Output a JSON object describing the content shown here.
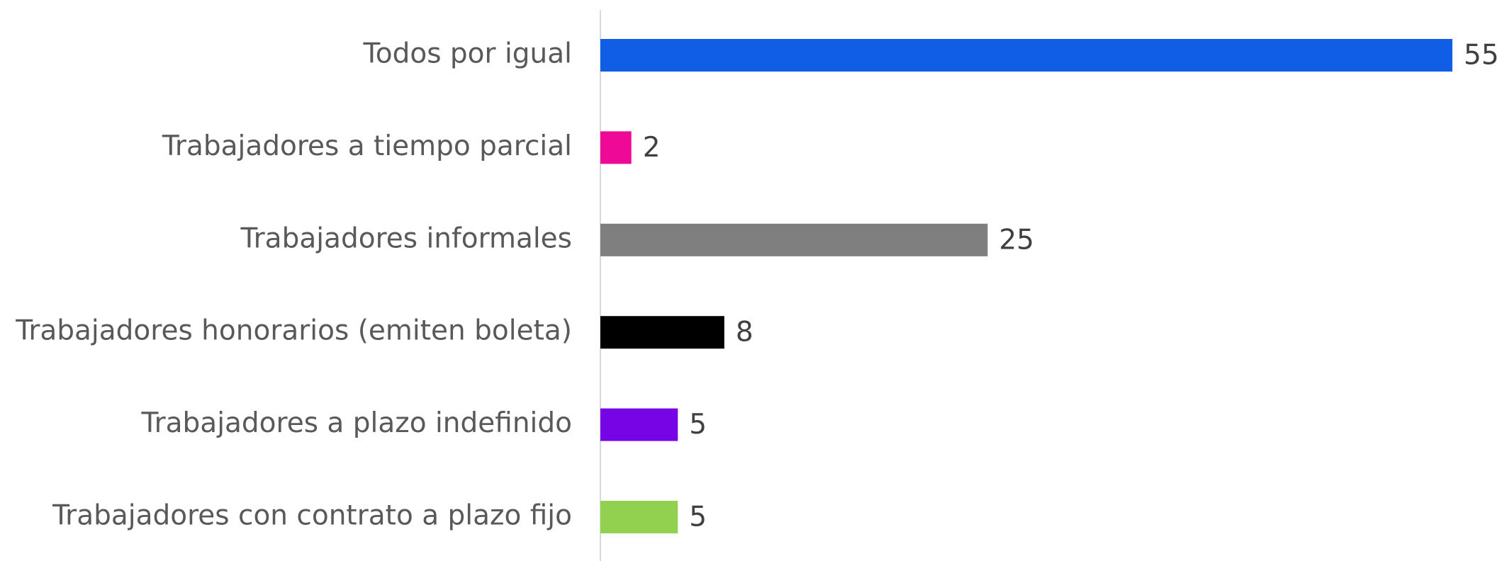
{
  "chart_data": {
    "type": "bar",
    "orientation": "horizontal",
    "categories": [
      "Todos por igual",
      "Trabajadores a tiempo parcial",
      "Trabajadores informales",
      "Trabajadores honorarios (emiten boleta)",
      "Trabajadores a plazo indefinido",
      "Trabajadores con contrato a plazo fijo"
    ],
    "values": [
      55,
      2,
      25,
      8,
      5,
      5
    ],
    "colors": [
      "#115ee6",
      "#ee0a96",
      "#7f7f7f",
      "#000000",
      "#7704e4",
      "#92d050"
    ]
  }
}
